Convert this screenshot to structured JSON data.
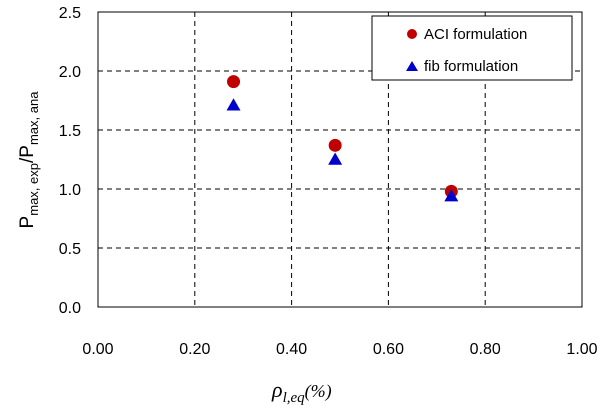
{
  "chart_data": {
    "type": "scatter",
    "xlim": [
      0,
      1
    ],
    "ylim": [
      0,
      2.5
    ],
    "x_ticks": [
      "0.00",
      "0.20",
      "0.40",
      "0.60",
      "0.80",
      "1.00"
    ],
    "y_ticks": [
      "0.0",
      "0.5",
      "1.0",
      "1.5",
      "2.0",
      "2.5"
    ],
    "x_tick_values": [
      0,
      0.2,
      0.4,
      0.6,
      0.8,
      1.0
    ],
    "y_tick_values": [
      0,
      0.5,
      1.0,
      1.5,
      2.0,
      2.5
    ],
    "grid": true,
    "legend_position": "top-right",
    "ylabel": {
      "base": "P",
      "sub1": "max, exp",
      "sep": "/P",
      "sub2": "max, ana"
    },
    "xlabel": {
      "rho": "ρ",
      "sub": "l,eq",
      "unit": "(%)"
    },
    "series": [
      {
        "name": "ACI  formulation",
        "marker": "circle",
        "color": "#c00000",
        "x": [
          0.28,
          0.49,
          0.73
        ],
        "y": [
          1.91,
          1.37,
          0.98
        ]
      },
      {
        "name": "fib  formulation",
        "marker": "triangle",
        "color": "#0000cc",
        "x": [
          0.28,
          0.49,
          0.73
        ],
        "y": [
          1.71,
          1.25,
          0.94
        ]
      }
    ]
  }
}
